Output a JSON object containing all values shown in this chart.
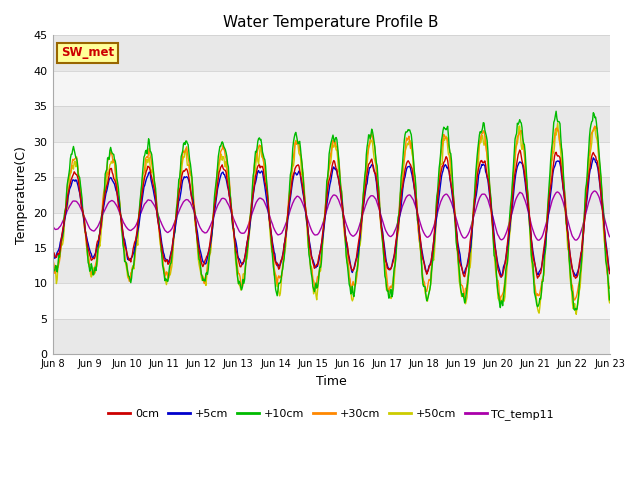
{
  "title": "Water Temperature Profile B",
  "xlabel": "Time",
  "ylabel": "Temperature(C)",
  "ylim": [
    0,
    45
  ],
  "yticks": [
    0,
    5,
    10,
    15,
    20,
    25,
    30,
    35,
    40,
    45
  ],
  "x_labels": [
    "Jun 8",
    "Jun 9",
    "Jun 10",
    "Jun 11",
    "Jun 12",
    "Jun 13",
    "Jun 14",
    "Jun 15",
    "Jun 16",
    "Jun 17",
    "Jun 18",
    "Jun 19",
    "Jun 20",
    "Jun 21",
    "Jun 22",
    "Jun 23"
  ],
  "series": {
    "0cm": {
      "color": "#cc0000",
      "lw": 1.0
    },
    "+5cm": {
      "color": "#0000cc",
      "lw": 1.0
    },
    "+10cm": {
      "color": "#00bb00",
      "lw": 1.0
    },
    "+30cm": {
      "color": "#ff8800",
      "lw": 1.0
    },
    "+50cm": {
      "color": "#cccc00",
      "lw": 1.0
    },
    "TC_temp11": {
      "color": "#aa00aa",
      "lw": 1.0
    }
  },
  "annotation_text": "SW_met",
  "annotation_color": "#cc0000",
  "annotation_bg": "#ffff99",
  "annotation_border": "#996600",
  "bg_color": "#ffffff",
  "band_colors": [
    "#e8e8e8",
    "#f5f5f5"
  ],
  "grid_color": "#cccccc",
  "n_days": 15,
  "pts_per_day": 48,
  "figsize": [
    6.4,
    4.8
  ],
  "dpi": 100
}
